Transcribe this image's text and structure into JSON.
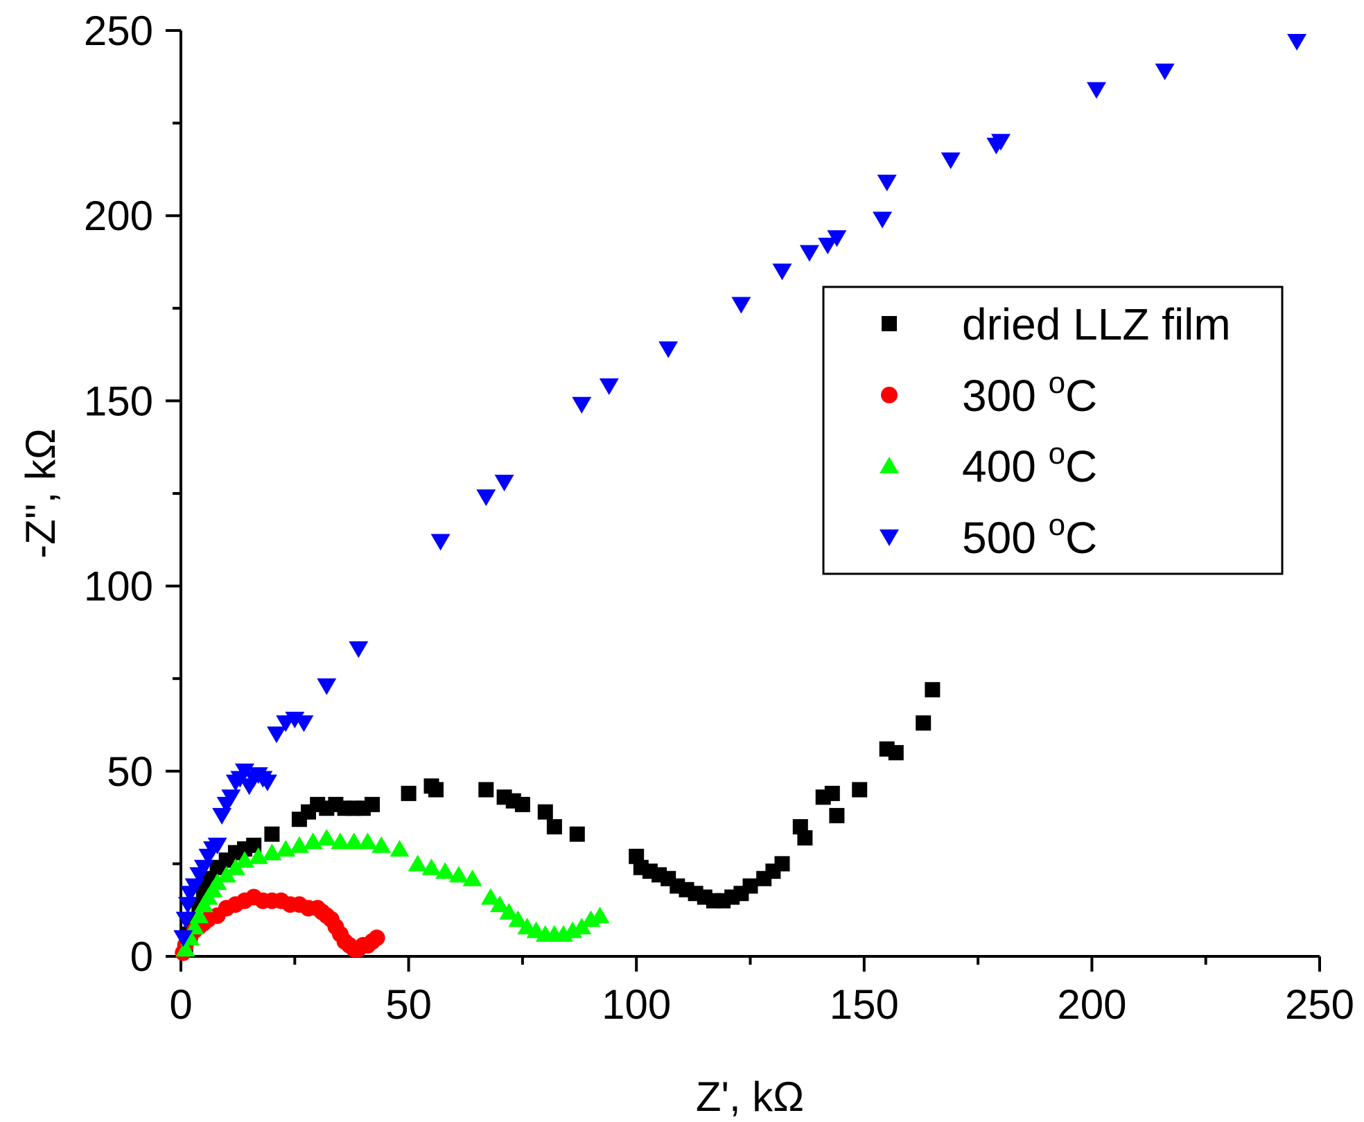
{
  "chart_data": {
    "type": "scatter",
    "title": "",
    "xlabel": "Z', kΩ",
    "ylabel": "-Z'', kΩ",
    "xlim": [
      0,
      250
    ],
    "ylim": [
      0,
      250
    ],
    "xticks": [
      "0",
      "50",
      "100",
      "150",
      "200",
      "250"
    ],
    "yticks": [
      "0",
      "50",
      "100",
      "150",
      "200",
      "250"
    ],
    "legend_position": "upper-right",
    "series": [
      {
        "name": "dried LLZ film",
        "label_main": "dried LLZ film",
        "label_sup": "",
        "label_end": "",
        "marker": "square",
        "color": "#000000",
        "x": [
          1,
          2,
          3,
          4,
          5,
          6,
          8,
          10,
          12,
          14,
          16,
          20,
          26,
          28,
          30,
          32,
          34,
          36,
          38,
          40,
          42,
          50,
          55,
          56,
          67,
          71,
          73,
          75,
          80,
          82,
          87,
          100,
          101,
          103,
          105,
          107,
          109,
          111,
          113,
          115,
          117,
          119,
          121,
          123,
          125,
          128,
          130,
          132,
          136,
          137,
          141,
          143,
          144,
          149,
          155,
          157,
          163,
          165
        ],
        "y": [
          2,
          6,
          10,
          14,
          18,
          21,
          24,
          26,
          28,
          29,
          30,
          33,
          37,
          39,
          41,
          40,
          41,
          40,
          40,
          40,
          41,
          44,
          46,
          45,
          45,
          43,
          42,
          41,
          39,
          35,
          33,
          27,
          24,
          23,
          22,
          21,
          19,
          18,
          17,
          16,
          15,
          15,
          16,
          17,
          19,
          21,
          23,
          25,
          35,
          32,
          43,
          44,
          38,
          45,
          56,
          55,
          63,
          72
        ]
      },
      {
        "name": "300 °C",
        "label_main": "300 ",
        "label_sup": "o",
        "label_end": "C",
        "marker": "circle",
        "color": "#ff0000",
        "x": [
          0.5,
          1,
          2,
          3,
          4,
          5,
          6,
          8,
          10,
          12,
          14,
          16,
          18,
          20,
          22,
          24,
          26,
          28,
          30,
          31,
          32,
          33,
          34,
          35,
          36,
          37,
          38,
          39,
          40,
          41,
          42,
          43
        ],
        "y": [
          1,
          3,
          5,
          7,
          8,
          9,
          10,
          11,
          13,
          14,
          15,
          16,
          15,
          15,
          15,
          14,
          14,
          13,
          13,
          12,
          11,
          10,
          8,
          6,
          4,
          3,
          2,
          2,
          3,
          3,
          4,
          5
        ]
      },
      {
        "name": "400 °C",
        "label_main": "400 ",
        "label_sup": "o",
        "label_end": "C",
        "marker": "triangle-up",
        "color": "#00ff00",
        "x": [
          1,
          2,
          3,
          4,
          5,
          6,
          7,
          8,
          10,
          12,
          14,
          17,
          20,
          23,
          26,
          29,
          32,
          35,
          38,
          41,
          44,
          48,
          52,
          55,
          58,
          61,
          64,
          68,
          70,
          72,
          74,
          76,
          78,
          80,
          82,
          84,
          86,
          88,
          90,
          92
        ],
        "y": [
          2,
          5,
          8,
          11,
          14,
          16,
          18,
          20,
          22,
          24,
          26,
          27,
          28,
          29,
          30,
          31,
          32,
          31,
          31,
          31,
          30,
          29,
          25,
          24,
          23,
          22,
          21,
          16,
          14,
          12,
          10,
          8,
          7,
          6,
          6,
          6,
          7,
          8,
          10,
          11
        ]
      },
      {
        "name": "500 °C",
        "label_main": "500 ",
        "label_sup": "o",
        "label_end": "C",
        "marker": "triangle-down",
        "color": "#0000ff",
        "x": [
          0.5,
          1,
          1.5,
          2,
          3,
          4,
          5,
          6,
          7,
          8,
          9,
          10,
          11,
          12,
          13,
          14,
          15,
          16,
          17,
          18,
          19,
          21,
          23,
          25,
          27,
          32,
          39,
          57,
          67,
          71,
          88,
          94,
          107,
          123,
          132,
          138,
          142,
          144,
          154,
          155,
          169,
          179,
          180,
          201,
          216,
          245
        ],
        "y": [
          5,
          10,
          14,
          17,
          19,
          22,
          24,
          27,
          29,
          30,
          38,
          41,
          43,
          47,
          48,
          50,
          46,
          48,
          49,
          48,
          47,
          60,
          63,
          64,
          63,
          73,
          83,
          112,
          124,
          128,
          149,
          154,
          164,
          176,
          185,
          190,
          192,
          194,
          199,
          209,
          215,
          219,
          220,
          234,
          239,
          247
        ]
      }
    ]
  }
}
